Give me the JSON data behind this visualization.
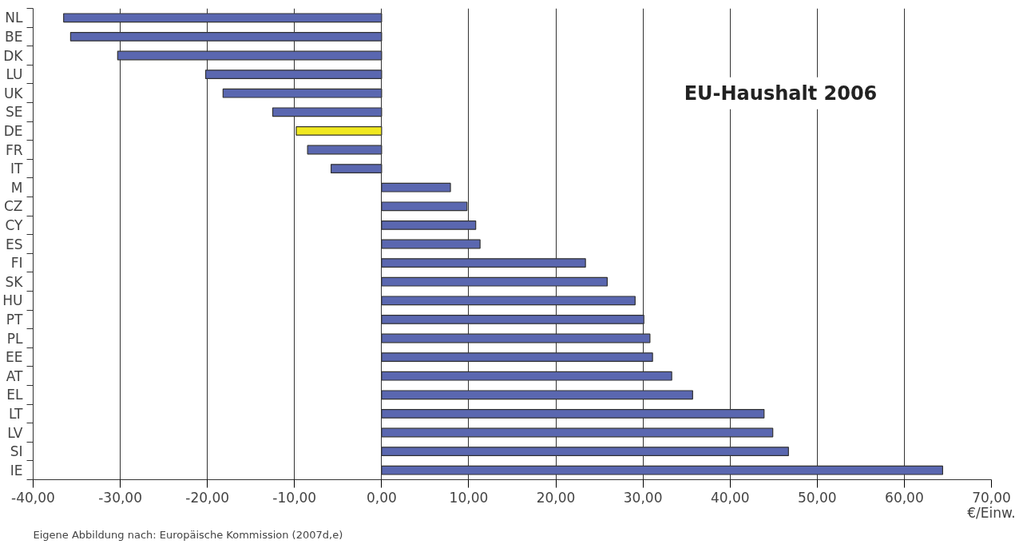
{
  "chart_data": {
    "type": "bar",
    "orientation": "horizontal",
    "title": "EU-Haushalt 2006",
    "xlabel": "€/Einw.",
    "categories": [
      "NL",
      "BE",
      "DK",
      "LU",
      "UK",
      "SE",
      "DE",
      "FR",
      "IT",
      "M",
      "CZ",
      "CY",
      "ES",
      "FI",
      "SK",
      "HU",
      "PT",
      "PL",
      "EE",
      "AT",
      "EL",
      "LT",
      "LV",
      "SI",
      "IE"
    ],
    "values": [
      -36.5,
      -35.7,
      -30.3,
      -20.2,
      -18.2,
      -12.5,
      -9.8,
      -8.5,
      -5.8,
      7.9,
      9.8,
      10.8,
      11.3,
      23.4,
      25.9,
      29.1,
      30.1,
      30.8,
      31.1,
      33.3,
      35.7,
      43.9,
      44.9,
      46.7,
      64.4
    ],
    "colors": [
      "#5a67b0",
      "#5a67b0",
      "#5a67b0",
      "#5a67b0",
      "#5a67b0",
      "#5a67b0",
      "#f0e820",
      "#5a67b0",
      "#5a67b0",
      "#5a67b0",
      "#5a67b0",
      "#5a67b0",
      "#5a67b0",
      "#5a67b0",
      "#5a67b0",
      "#5a67b0",
      "#5a67b0",
      "#5a67b0",
      "#5a67b0",
      "#5a67b0",
      "#5a67b0",
      "#5a67b0",
      "#5a67b0",
      "#5a67b0",
      "#5a67b0"
    ],
    "xlim": [
      -40,
      70
    ],
    "xticks": [
      {
        "value": -40,
        "label": "-40,00"
      },
      {
        "value": -30,
        "label": "-30,00"
      },
      {
        "value": -20,
        "label": "-20,00"
      },
      {
        "value": -10,
        "label": "-10,00"
      },
      {
        "value": 0,
        "label": "0,00"
      },
      {
        "value": 10,
        "label": "10,00"
      },
      {
        "value": 20,
        "label": "20,00"
      },
      {
        "value": 30,
        "label": "30,00"
      },
      {
        "value": 40,
        "label": "40,00"
      },
      {
        "value": 50,
        "label": "50,00"
      },
      {
        "value": 60,
        "label": "60,00"
      },
      {
        "value": 70,
        "label": "70,00"
      }
    ],
    "grid": "x",
    "annotations": [
      "Eigene Abbildung nach: Europäische Kommission (2007d,e)"
    ]
  }
}
